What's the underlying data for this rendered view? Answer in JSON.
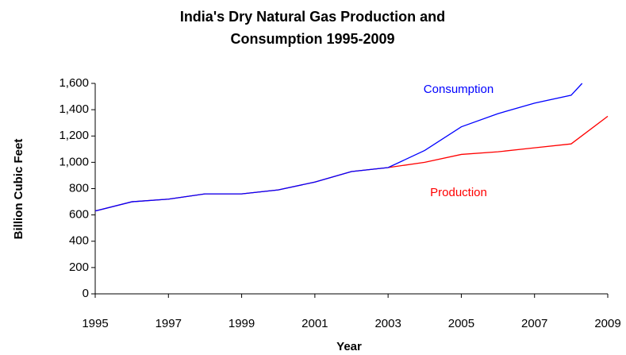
{
  "chart_data": {
    "type": "line",
    "title": [
      "India's Dry Natural Gas Production and",
      "Consumption 1995-2009"
    ],
    "xlabel": "Year",
    "ylabel": "Billion Cubic Feet",
    "xlim": [
      1995,
      2009
    ],
    "xticks": [
      1995,
      1997,
      1999,
      2001,
      2003,
      2005,
      2007,
      2009
    ],
    "ylim": [
      0,
      1600
    ],
    "yticks": [
      0,
      200,
      400,
      600,
      800,
      {
        "value": 1000,
        "label": "1,000"
      },
      {
        "value": 1200,
        "label": "1,200"
      },
      {
        "value": 1400,
        "label": "1,400"
      },
      {
        "value": 1600,
        "label": "1,600"
      }
    ],
    "grid": false,
    "series": [
      {
        "name": "Production",
        "color": "#ff0000",
        "x": [
          1995,
          1996,
          1997,
          1998,
          1999,
          2000,
          2001,
          2002,
          2003,
          2004,
          2005,
          2006,
          2007,
          2008,
          2009
        ],
        "values": [
          630,
          700,
          720,
          760,
          760,
          790,
          850,
          930,
          960,
          1000,
          1060,
          1080,
          1110,
          1140,
          1350
        ]
      },
      {
        "name": "Consumption",
        "color": "#0000ff",
        "x": [
          1995,
          1996,
          1997,
          1998,
          1999,
          2000,
          2001,
          2002,
          2003,
          2004,
          2005,
          2006,
          2007,
          2008,
          2008.3
        ],
        "values": [
          630,
          700,
          720,
          760,
          760,
          790,
          850,
          930,
          960,
          1090,
          1270,
          1370,
          1450,
          1510,
          1600
        ]
      }
    ]
  }
}
